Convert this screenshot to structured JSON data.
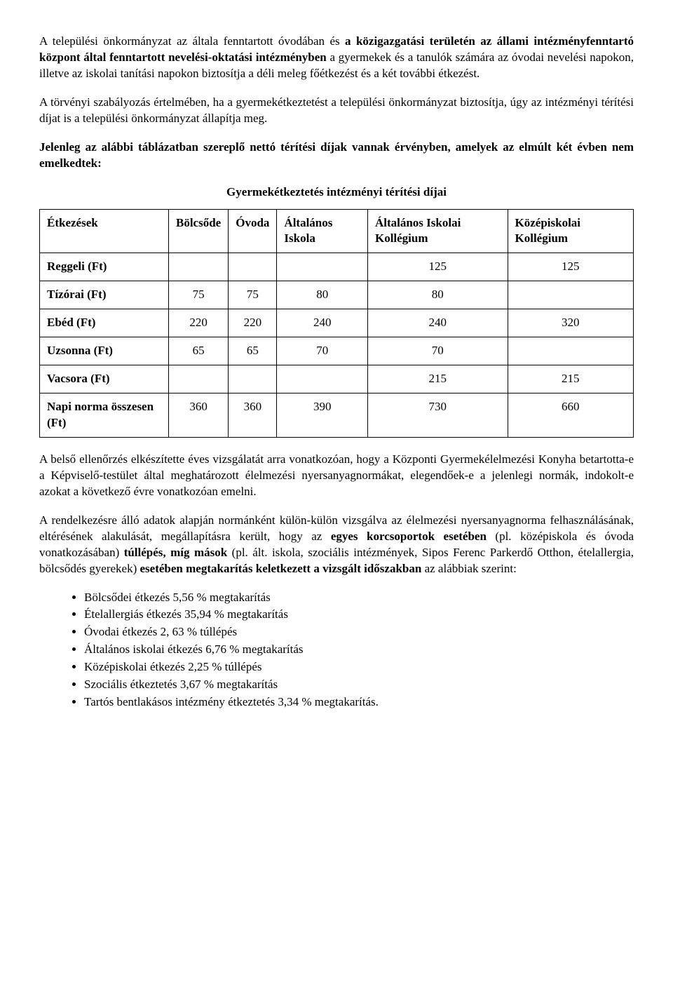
{
  "paragraphs": {
    "p1_a": "A települési önkormányzat az általa fenntartott óvodában és ",
    "p1_b": "a közigazgatási területén az állami intézményfenntartó központ által fenntartott nevelési-oktatási intézményben ",
    "p1_c": "a gyermekek és a tanulók számára az óvodai nevelési napokon, illetve az iskolai tanítási napokon biztosítja a déli meleg főétkezést és a két további étkezést.",
    "p2": "A törvényi szabályozás értelmében, ha a gyermekétkeztetést a települési önkormányzat biztosítja, úgy az intézményi térítési díjat is a települési önkormányzat állapítja meg.",
    "p3": "Jelenleg az alábbi táblázatban szereplő nettó térítési díjak vannak érvényben, amelyek az elmúlt két évben nem emelkedtek:",
    "table_title": "Gyermekétkeztetés intézményi térítési díjai",
    "p4": "A belső ellenőrzés elkészítette éves vizsgálatát arra vonatkozóan, hogy a Központi Gyermekélelmezési Konyha betartotta-e a Képviselő-testület által meghatározott élelmezési nyersanyagnormákat, elegendőek-e a jelenlegi normák, indokolt-e azokat a következő évre vonatkozóan emelni.",
    "p5_a": "A rendelkezésre álló adatok alapján normánként külön-külön vizsgálva az élelmezési nyersanyagnorma felhasználásának, eltérésének alakulását, megállapításra került, hogy az ",
    "p5_b": "egyes korcsoportok esetében ",
    "p5_c": "(pl. középiskola és óvoda vonatkozásában) ",
    "p5_d": "túllépés, míg mások ",
    "p5_e": "(pl. ált. iskola, szociális intézmények, Sipos Ferenc Parkerdő Otthon, ételallergia, bölcsődés gyerekek) ",
    "p5_f": "esetében megtakarítás keletkezett a vizsgált időszakban ",
    "p5_g": "az alábbiak szerint:"
  },
  "table": {
    "columns": [
      "Étkezések",
      "Bölcsőde",
      "Óvoda",
      "Általános Iskola",
      "Általános Iskolai Kollégium",
      "Középiskolai Kollégium"
    ],
    "rows": [
      {
        "label": "Reggeli (Ft)",
        "cells": [
          "",
          "",
          "",
          "125",
          "125"
        ]
      },
      {
        "label": "Tízórai (Ft)",
        "cells": [
          "75",
          "75",
          "80",
          "80",
          ""
        ]
      },
      {
        "label": "Ebéd (Ft)",
        "cells": [
          "220",
          "220",
          "240",
          "240",
          "320"
        ]
      },
      {
        "label": "Uzsonna (Ft)",
        "cells": [
          "65",
          "65",
          "70",
          "70",
          ""
        ]
      },
      {
        "label": "Vacsora (Ft)",
        "cells": [
          "",
          "",
          "",
          "215",
          "215"
        ]
      },
      {
        "label": "Napi norma összesen (Ft)",
        "cells": [
          "360",
          "360",
          "390",
          "730",
          "660"
        ]
      }
    ]
  },
  "bullets": [
    "Bölcsődei étkezés 5,56 % megtakarítás",
    "Ételallergiás étkezés 35,94 % megtakarítás",
    "Óvodai étkezés 2, 63 % túllépés",
    "Általános iskolai étkezés 6,76 % megtakarítás",
    "Középiskolai étkezés 2,25 % túllépés",
    "Szociális étkeztetés 3,67 % megtakarítás",
    "Tartós bentlakásos intézmény étkeztetés 3,34 % megtakarítás."
  ]
}
